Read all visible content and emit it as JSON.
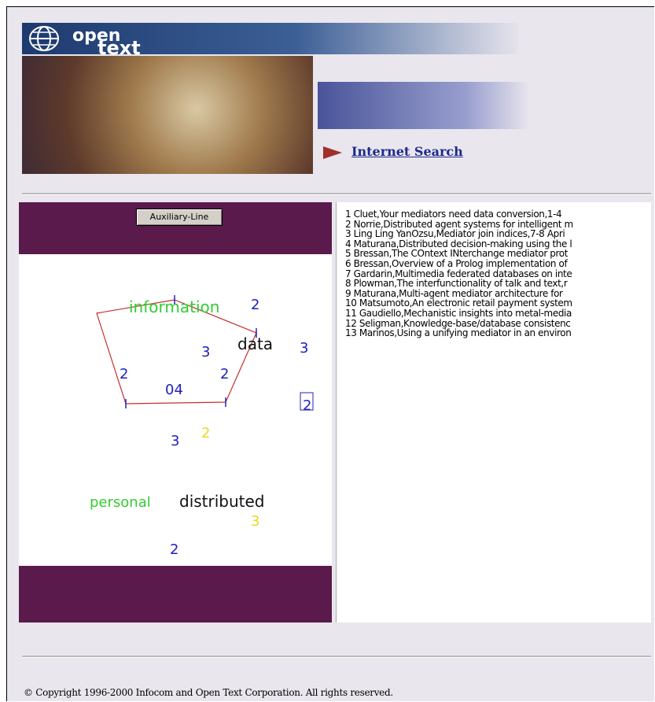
{
  "header": {
    "logo_top": "open",
    "logo_bottom": "text",
    "link": "Internet Search"
  },
  "panel": {
    "button": "Auxiliary-Line",
    "diagram": {
      "labels": [
        "information",
        "2",
        "data",
        "3",
        "3",
        "2",
        "2",
        "04",
        "2",
        "3",
        "2",
        "personal",
        "distributed",
        "3",
        "2"
      ]
    },
    "results": [
      "1 Cluet,Your mediators need data conversion,1-4",
      "2 Norrie,Distributed agent systems for intelligent m",
      "3 Ling Ling YanOzsu,Mediator join indices,7-8 Apri",
      "4 Maturana,Distributed decision-making using the l",
      "5 Bressan,The COntext INterchange mediator prot",
      "6 Bressan,Overview of a Prolog implementation of",
      "7 Gardarin,Multimedia federated databases on inte",
      "8 Plowman,The interfunctionality of talk and text,r",
      "9 Maturana,Multi-agent mediator architecture for",
      "10 Matsumoto,An electronic retail payment system",
      "11 Gaudiello,Mechanistic insights into metal-media",
      "12 Seligman,Knowledge-base/database consistenc",
      "13 Marinos,Using a unifying mediator in an environ"
    ]
  },
  "footer": {
    "copyright": "© Copyright 1996-2000 Infocom and Open Text Corporation. All rights reserved."
  }
}
